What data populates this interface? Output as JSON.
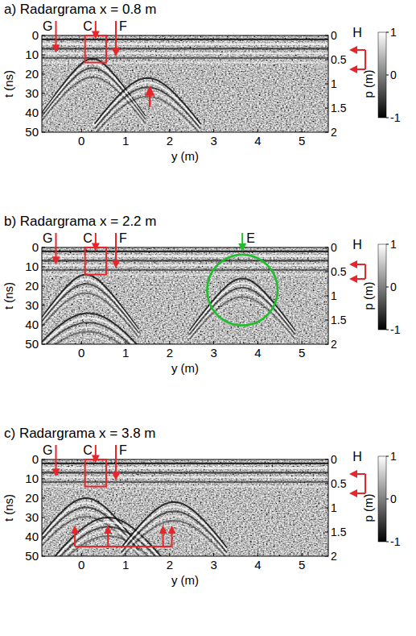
{
  "chart_data": [
    {
      "type": "radargram",
      "title": "a) Radargrama x = 0.8 m",
      "xlabel": "y (m)",
      "ylabel": "t (ns)",
      "y2label": "p (m)",
      "xlim": [
        -0.9,
        5.6
      ],
      "xticks": [
        0,
        1,
        2,
        3,
        4,
        5
      ],
      "ylim": [
        0,
        50
      ],
      "yticks": [
        0,
        10,
        20,
        30,
        40,
        50
      ],
      "y2lim": [
        0,
        2
      ],
      "y2ticks": [
        0,
        0.5,
        1,
        1.5,
        2
      ],
      "colorbar": {
        "lim": [
          -1,
          1
        ],
        "ticks": [
          -1,
          0,
          1
        ]
      },
      "color": "#e8262a",
      "markers": [
        {
          "label": "G",
          "y": -0.58,
          "t": 8
        },
        {
          "label": "C",
          "y": 0.32,
          "t": 1
        },
        {
          "label": "F",
          "y": 0.78,
          "t": 10
        }
      ],
      "box": {
        "y": [
          0.08,
          0.56
        ],
        "t": [
          0,
          14
        ]
      },
      "depth_marker": {
        "label": "H",
        "depths": [
          0.3,
          0.7
        ]
      },
      "hyperbolas": [
        {
          "y": 0.25,
          "t": 12
        },
        {
          "y": 1.5,
          "t": 22
        }
      ],
      "arrow_up": {
        "y": 1.55,
        "t": [
          37,
          27
        ]
      }
    },
    {
      "type": "radargram",
      "title": "b) Radargrama x = 2.2 m",
      "xlabel": "y (m)",
      "ylabel": "t (ns)",
      "y2label": "p (m)",
      "xlim": [
        -0.9,
        5.6
      ],
      "xticks": [
        0,
        1,
        2,
        3,
        4,
        5
      ],
      "ylim": [
        0,
        50
      ],
      "yticks": [
        0,
        10,
        20,
        30,
        40,
        50
      ],
      "y2lim": [
        0,
        2
      ],
      "y2ticks": [
        0,
        0.5,
        1,
        1.5,
        2
      ],
      "colorbar": {
        "lim": [
          -1,
          1
        ],
        "ticks": [
          -1,
          0,
          1
        ]
      },
      "color": "#e8262a",
      "markers": [
        {
          "label": "G",
          "y": -0.58,
          "t": 8
        },
        {
          "label": "C",
          "y": 0.32,
          "t": 1
        },
        {
          "label": "F",
          "y": 0.78,
          "t": 10
        }
      ],
      "box": {
        "y": [
          0.08,
          0.56
        ],
        "t": [
          0,
          14
        ]
      },
      "depth_marker": {
        "label": "H",
        "depths": [
          0.35,
          0.65
        ]
      },
      "hyperbolas": [
        {
          "y": 0.1,
          "t": 14
        },
        {
          "y": 0.15,
          "t": 34
        },
        {
          "y": 3.65,
          "t": 16
        }
      ],
      "circle": {
        "label": "E",
        "y": 3.65,
        "t": 22,
        "r": 0.8,
        "color": "#1dbf2a"
      }
    },
    {
      "type": "radargram",
      "title": "c) Radargrama x = 3.8 m",
      "xlabel": "y (m)",
      "ylabel": "t (ns)",
      "y2label": "p (m)",
      "xlim": [
        -0.9,
        5.6
      ],
      "xticks": [
        0,
        1,
        2,
        3,
        4,
        5
      ],
      "ylim": [
        0,
        50
      ],
      "yticks": [
        0,
        10,
        20,
        30,
        40,
        50
      ],
      "y2lim": [
        0,
        2
      ],
      "y2ticks": [
        0,
        0.5,
        1,
        1.5,
        2
      ],
      "colorbar": {
        "lim": [
          -1,
          1
        ],
        "ticks": [
          -1,
          0,
          1
        ]
      },
      "color": "#e8262a",
      "markers": [
        {
          "label": "G",
          "y": -0.58,
          "t": 8
        },
        {
          "label": "C",
          "y": 0.32,
          "t": 1
        },
        {
          "label": "F",
          "y": 0.78,
          "t": 10
        }
      ],
      "box": {
        "y": [
          0.08,
          0.56
        ],
        "t": [
          0,
          14
        ]
      },
      "depth_marker": {
        "label": "H",
        "depths": [
          0.3,
          0.7
        ]
      },
      "hyperbolas": [
        {
          "y": 0.1,
          "t": 20
        },
        {
          "y": 0.6,
          "t": 30
        },
        {
          "y": 2.1,
          "t": 22
        }
      ],
      "bracket_arrows": {
        "y": [
          -0.15,
          0.6,
          1.85,
          2.05
        ],
        "t": [
          35,
          45
        ]
      }
    }
  ]
}
